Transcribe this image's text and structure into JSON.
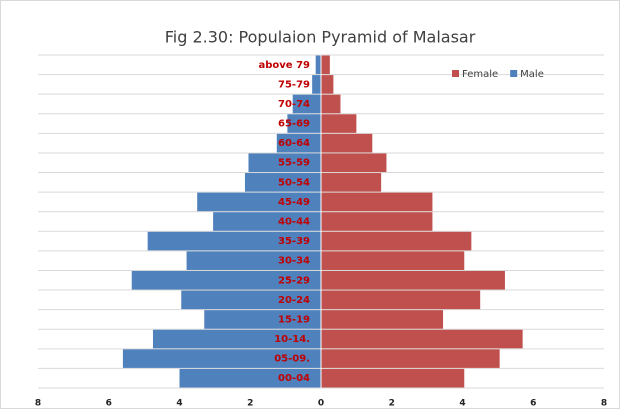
{
  "chart_data": {
    "type": "pyramid",
    "title": "Fig 2.30: Populaion Pyramid of Malasar",
    "categories": [
      "00-04",
      "05-09.",
      "10-14.",
      "15-19",
      "20-24",
      "25-29",
      "30-34",
      "35-39",
      "40-44",
      "45-49",
      "50-54",
      "55-59",
      "60-64",
      "65-69",
      "70-74",
      "75-79",
      "above 79"
    ],
    "series": [
      {
        "name": "Female",
        "color": "#c0504d",
        "values": [
          4.05,
          5.05,
          5.7,
          3.45,
          4.5,
          5.2,
          4.05,
          4.25,
          3.15,
          3.15,
          1.7,
          1.85,
          1.45,
          1.0,
          0.55,
          0.35,
          0.25
        ]
      },
      {
        "name": "Male",
        "color": "#4f81bd",
        "values": [
          -4.0,
          -5.6,
          -4.75,
          -3.3,
          -3.95,
          -5.35,
          -3.8,
          -4.9,
          -3.05,
          -3.5,
          -2.15,
          -2.05,
          -1.25,
          -0.95,
          -0.8,
          -0.25,
          -0.15
        ]
      }
    ],
    "xlim": [
      -8,
      8
    ],
    "xticks": [
      {
        "value": -8,
        "label": "8"
      },
      {
        "value": -6,
        "label": "6"
      },
      {
        "value": -4,
        "label": "4"
      },
      {
        "value": -2,
        "label": "2"
      },
      0,
      2,
      4,
      6,
      8
    ],
    "legend": "top-right",
    "grid": true
  }
}
